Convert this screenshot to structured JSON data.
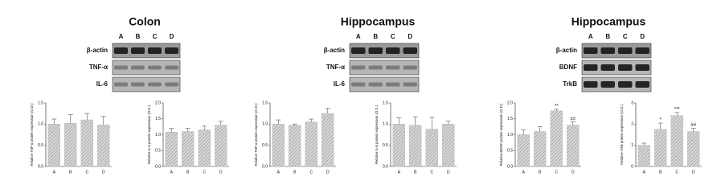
{
  "panels": [
    {
      "title": "Colon",
      "lanes": [
        "A",
        "B",
        "C",
        "D"
      ],
      "blots": [
        "β-actin",
        "TNF-α",
        "IL-6"
      ]
    },
    {
      "title": "Hippocampus",
      "lanes": [
        "A",
        "B",
        "C",
        "D"
      ],
      "blots": [
        "β-actin",
        "TNF-α",
        "IL-6"
      ]
    },
    {
      "title": "Hippocampus",
      "lanes": [
        "A",
        "B",
        "C",
        "D"
      ],
      "blots": [
        "β-actin",
        "BDNF",
        "TrkB"
      ]
    }
  ],
  "chart_data": [
    {
      "type": "bar",
      "y_label": "Relative TNF-α protein expression (O.D.)",
      "categories": [
        "A",
        "B",
        "C",
        "D"
      ],
      "values": [
        1.0,
        1.02,
        1.1,
        0.98
      ],
      "errors": [
        0.12,
        0.2,
        0.15,
        0.2
      ],
      "annotations": [
        null,
        null,
        null,
        null
      ],
      "ylim": [
        0,
        1.5
      ],
      "yticks": [
        {
          "value": 0,
          "label": "0.0"
        },
        {
          "value": 0.5,
          "label": "0.5"
        },
        {
          "value": 1,
          "label": "1.0"
        },
        {
          "value": 1.5,
          "label": "1.5"
        }
      ],
      "color": "#bdbdbd"
    },
    {
      "type": "bar",
      "y_label": "Relative IL-6 protein expression (O.D.)",
      "categories": [
        "A",
        "B",
        "C",
        "D"
      ],
      "values": [
        1.08,
        1.1,
        1.15,
        1.3
      ],
      "errors": [
        0.12,
        0.1,
        0.12,
        0.12
      ],
      "annotations": [
        null,
        null,
        null,
        null
      ],
      "ylim": [
        0,
        2
      ],
      "yticks": [
        {
          "value": 0,
          "label": "0.0"
        },
        {
          "value": 0.5,
          "label": "0.5"
        },
        {
          "value": 1,
          "label": "1.0"
        },
        {
          "value": 1.5,
          "label": "1.5"
        },
        {
          "value": 2,
          "label": "2.0"
        }
      ],
      "color": "#bdbdbd"
    },
    {
      "type": "bar",
      "y_label": "Relative TNF-α protein expression (O.D.)",
      "categories": [
        "A",
        "B",
        "C",
        "D"
      ],
      "values": [
        1.0,
        0.97,
        1.05,
        1.25
      ],
      "errors": [
        0.1,
        0.03,
        0.07,
        0.12
      ],
      "annotations": [
        null,
        null,
        null,
        null
      ],
      "ylim": [
        0,
        1.5
      ],
      "yticks": [
        {
          "value": 0,
          "label": "0.0"
        },
        {
          "value": 0.5,
          "label": "0.5"
        },
        {
          "value": 1,
          "label": "1.0"
        },
        {
          "value": 1.5,
          "label": "1.5"
        }
      ],
      "color": "#bdbdbd"
    },
    {
      "type": "bar",
      "y_label": "Relative IL-6 protein expression (O.D.)",
      "categories": [
        "A",
        "B",
        "C",
        "D"
      ],
      "values": [
        1.0,
        0.97,
        0.88,
        1.0
      ],
      "errors": [
        0.15,
        0.2,
        0.28,
        0.07
      ],
      "annotations": [
        null,
        null,
        null,
        null
      ],
      "ylim": [
        0,
        1.5
      ],
      "yticks": [
        {
          "value": 0,
          "label": "0.0"
        },
        {
          "value": 0.5,
          "label": "0.5"
        },
        {
          "value": 1,
          "label": "1.0"
        },
        {
          "value": 1.5,
          "label": "1.5"
        }
      ],
      "color": "#bdbdbd"
    },
    {
      "type": "bar",
      "y_label": "Relative BDNF protein expression (O.D.)",
      "categories": [
        "A",
        "B",
        "C",
        "D"
      ],
      "values": [
        1.0,
        1.1,
        1.75,
        1.3
      ],
      "errors": [
        0.15,
        0.15,
        0.05,
        0.1
      ],
      "annotations": [
        null,
        null,
        "**",
        "##"
      ],
      "ylim": [
        0,
        2
      ],
      "yticks": [
        {
          "value": 0,
          "label": "0.0"
        },
        {
          "value": 0.5,
          "label": "0.5"
        },
        {
          "value": 1,
          "label": "1.0"
        },
        {
          "value": 1.5,
          "label": "1.5"
        },
        {
          "value": 2,
          "label": "2.0"
        }
      ],
      "color": "#bdbdbd"
    },
    {
      "type": "bar",
      "y_label": "Relative TrkB protein expression (O.D.)",
      "categories": [
        "A",
        "B",
        "C",
        "D"
      ],
      "values": [
        1.0,
        1.75,
        2.4,
        1.65
      ],
      "errors": [
        0.1,
        0.3,
        0.15,
        0.15
      ],
      "annotations": [
        null,
        "*",
        "***",
        "##"
      ],
      "ylim": [
        0,
        3
      ],
      "yticks": [
        0,
        1,
        2,
        3
      ],
      "color": "#bdbdbd"
    }
  ]
}
